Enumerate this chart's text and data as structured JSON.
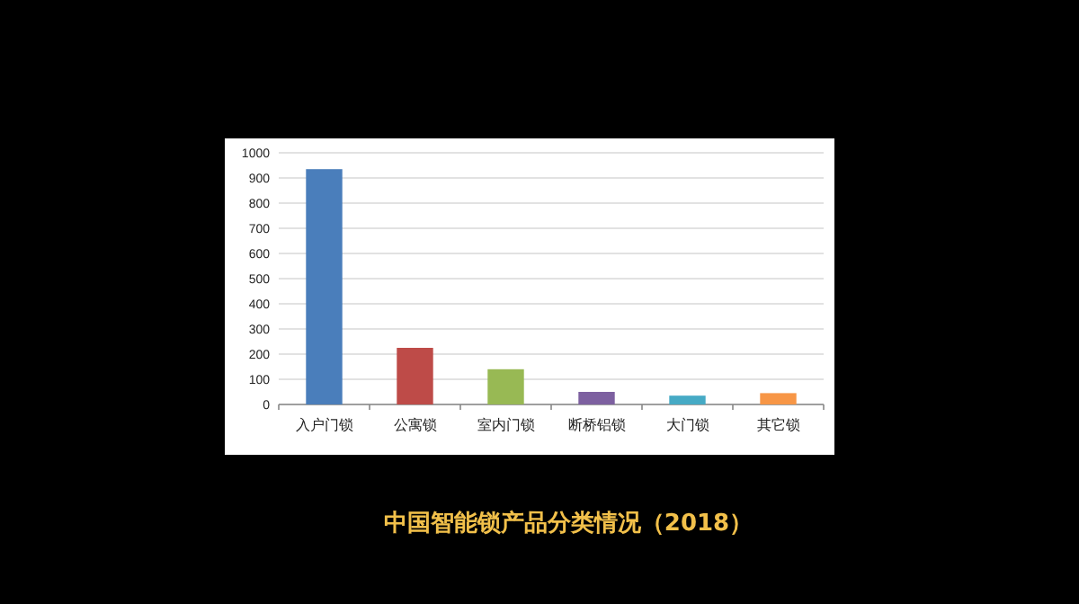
{
  "chart_data": {
    "type": "bar",
    "title": "中国智能锁产品分类情况（2018）",
    "categories": [
      "入户门锁",
      "公寓锁",
      "室内门锁",
      "断桥铝锁",
      "大门锁",
      "其它锁"
    ],
    "values": [
      935,
      225,
      140,
      50,
      35,
      45
    ],
    "colors": [
      "#4a7ebb",
      "#be4b48",
      "#98b954",
      "#7d60a0",
      "#46aac5",
      "#f79646"
    ],
    "ylim": [
      0,
      1000
    ],
    "yticks": [
      0,
      100,
      200,
      300,
      400,
      500,
      600,
      700,
      800,
      900,
      1000
    ],
    "grid": "y"
  }
}
